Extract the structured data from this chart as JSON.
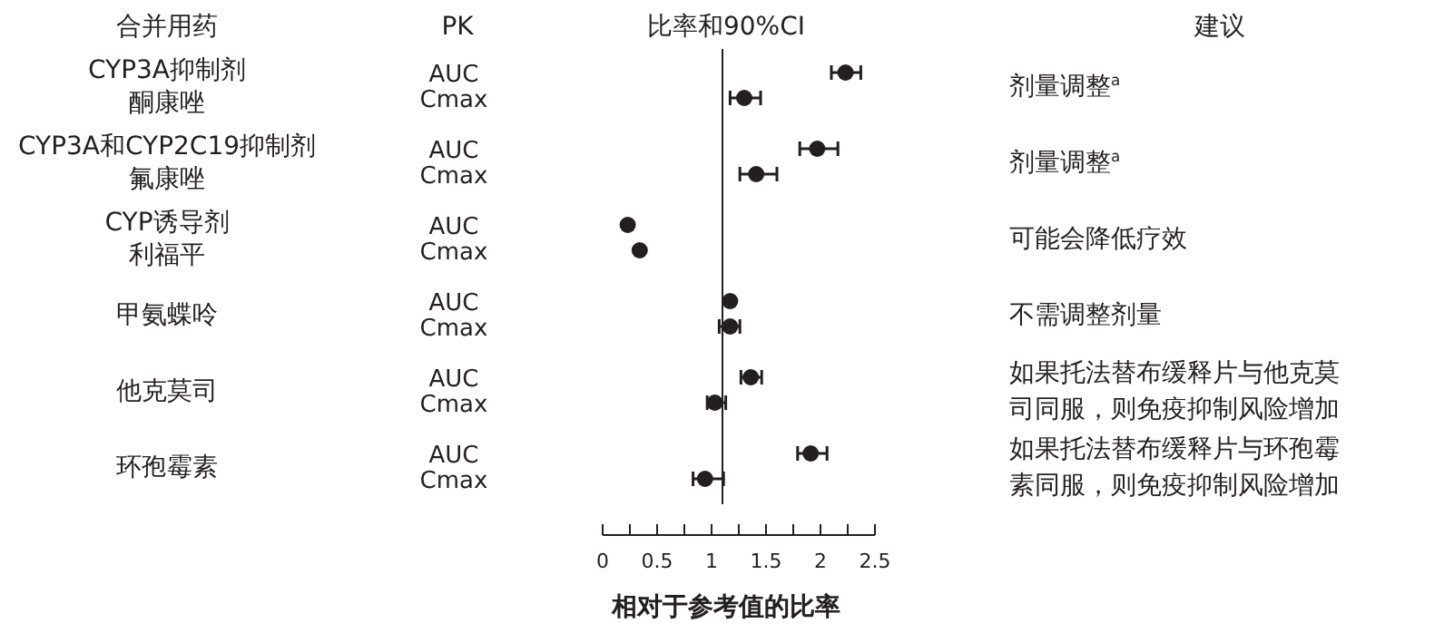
{
  "chart_data": {
    "type": "scatter",
    "orientation": "horizontal",
    "title": "比率和90%CI",
    "xlabel": "相对于参考值的比率",
    "categories": [
      "AUC",
      "Cmax",
      "AUC",
      "Cmax",
      "AUC",
      "Cmax",
      "AUC",
      "Cmax",
      "AUC",
      "Cmax",
      "AUC",
      "Cmax"
    ],
    "values": [
      2.23,
      1.3,
      1.97,
      1.41,
      0.23,
      0.34,
      1.17,
      1.17,
      1.36,
      1.03,
      1.91,
      0.94
    ],
    "errors": [
      [
        2.1,
        2.37
      ],
      [
        1.17,
        1.45
      ],
      [
        1.81,
        2.16
      ],
      [
        1.26,
        1.6
      ],
      null,
      null,
      null,
      [
        1.07,
        1.26
      ],
      [
        1.27,
        1.46
      ],
      [
        0.96,
        1.13
      ],
      [
        1.79,
        2.06
      ],
      [
        0.83,
        1.11
      ]
    ],
    "color": "#231f20",
    "marker": "circle",
    "xlim": [
      0,
      2.5
    ],
    "xticks": [
      0,
      {
        "value": 0.25,
        "label": null
      },
      0.5,
      {
        "value": 0.75,
        "label": null
      },
      1,
      {
        "value": 1.25,
        "label": null
      },
      1.5,
      {
        "value": 1.75,
        "label": null
      },
      2,
      {
        "value": 2.25,
        "label": null
      },
      2.5
    ],
    "ref_lines": [
      {
        "axis": "x",
        "value": 1.1,
        "label": null
      }
    ],
    "annotations": [
      "合并用药",
      "PK",
      "建议",
      "CYP3A抑制剂",
      "酮康唑",
      "CYP3A和CYP2C19抑制剂",
      "氟康唑",
      "CYP诱导剂",
      "利福平",
      "甲氨蝶呤",
      "他克莫司",
      "环孢霉素",
      "剂量调整$^{a}$",
      "剂量调整$^{a}$",
      "可能会降低疗效",
      "不需调整剂量",
      "如果托法替布缓释片与他克莫司同服，则免疫抑制风险增加",
      "如果托法替布缓释片与环孢霉素同服，则免疫抑制风险增加"
    ]
  }
}
